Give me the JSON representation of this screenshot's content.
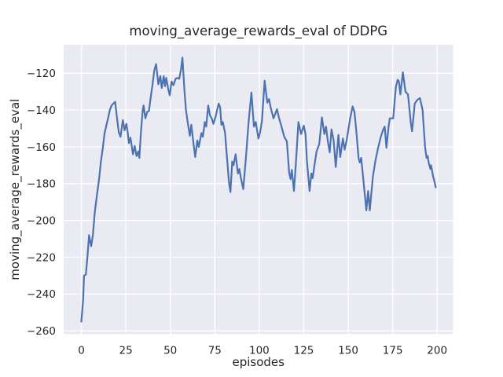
{
  "chart_data": {
    "type": "line",
    "title": "moving_average_rewards_eval of DDPG",
    "xlabel": "episodes",
    "ylabel": "moving_average_rewards_eval",
    "xlim": [
      -9.95,
      208.95
    ],
    "ylim": [
      -261.8,
      -104.5
    ],
    "xticks": [
      0,
      25,
      50,
      75,
      100,
      125,
      150,
      175,
      200
    ],
    "xtick_labels": [
      "0",
      "25",
      "50",
      "75",
      "100",
      "125",
      "150",
      "175",
      "200"
    ],
    "yticks": [
      -120,
      -140,
      -160,
      -180,
      -200,
      -220,
      -240,
      -260
    ],
    "ytick_labels": [
      "−120",
      "−140",
      "−160",
      "−180",
      "−200",
      "−220",
      "−240",
      "−260"
    ],
    "grid": true,
    "legend": null,
    "line_color": "#4c72b0",
    "plot_bg_color": "#eaeaf2",
    "grid_color": "#ffffff",
    "text_color": "#262626",
    "figure_bg_color": "#ffffff",
    "series": [
      {
        "name": "moving_average_rewards_eval",
        "x": [
          0,
          1,
          1.5,
          2.5,
          3.5,
          4.3,
          5.5,
          6.5,
          7.5,
          8.8,
          10,
          11,
          12,
          13,
          14,
          15,
          16,
          17,
          18,
          19,
          20,
          21,
          22,
          23.3,
          24.3,
          25.3,
          26,
          26.7,
          27.6,
          29,
          30,
          31,
          32,
          32.6,
          33.5,
          34.5,
          35,
          36,
          37,
          38,
          39,
          40,
          41,
          42,
          43.3,
          44.4,
          45.2,
          46.3,
          47,
          47.7,
          48.8,
          49.7,
          50.7,
          51.7,
          53,
          54,
          55,
          56,
          56.8,
          58,
          58.8,
          60,
          61,
          61.8,
          63,
          64,
          65.2,
          66,
          67.5,
          68.3,
          69.4,
          70.2,
          71.3,
          72.3,
          73.3,
          74.2,
          75.5,
          76.3,
          77.2,
          78,
          78.7,
          79.5,
          80.8,
          81.5,
          83,
          83.8,
          84.8,
          85.5,
          86.7,
          88,
          88.8,
          89.6,
          91,
          92.5,
          94,
          95.6,
          97,
          98,
          99.5,
          100.5,
          101.5,
          103,
          104.5,
          105.5,
          106.5,
          108,
          109,
          110,
          111,
          112.5,
          114,
          115.5,
          116.8,
          117.6,
          118.3,
          119.5,
          120.5,
          122,
          123.5,
          125,
          126,
          126.8,
          128.3,
          129.3,
          130,
          131,
          132.2,
          133.7,
          135.2,
          136.6,
          137.5,
          138.6,
          139.6,
          140.6,
          141.8,
          143,
          144.5,
          145.5,
          147,
          148,
          149,
          150,
          151,
          152.5,
          153.5,
          154.7,
          155.8,
          156.5,
          157.3,
          158.7,
          160.2,
          161.2,
          162.1,
          163.9,
          165.3,
          166.8,
          168.3,
          169.7,
          170.5,
          171.5,
          172.7,
          173.4,
          175.3,
          176.8,
          177.8,
          178.5,
          179.3,
          180.7,
          182.2,
          183.6,
          185.2,
          185.9,
          187.4,
          188.8,
          190.3,
          191.8,
          193.2,
          194,
          194.7,
          195.2,
          196.2,
          196.6,
          197.7,
          198.4,
          199.2
        ],
        "y": [
          -255,
          -243,
          -230,
          -229.5,
          -219,
          -208,
          -214,
          -208,
          -196,
          -186,
          -177,
          -168,
          -161,
          -153,
          -148.5,
          -144.5,
          -140,
          -137.5,
          -136.5,
          -135.5,
          -144,
          -152,
          -154.5,
          -145.5,
          -151,
          -147.5,
          -152,
          -158,
          -155,
          -164,
          -159.5,
          -165,
          -162.5,
          -166,
          -151.5,
          -140,
          -137.5,
          -144.5,
          -141,
          -140.5,
          -133,
          -126,
          -118.5,
          -115,
          -126,
          -121.5,
          -128,
          -121.5,
          -127,
          -122.5,
          -128.5,
          -132,
          -124.5,
          -126.5,
          -123,
          -122.5,
          -123,
          -118,
          -111.5,
          -130,
          -140,
          -148,
          -154,
          -148,
          -158,
          -165.5,
          -156.5,
          -160,
          -152.5,
          -154.5,
          -146.5,
          -149,
          -137.5,
          -143,
          -144.5,
          -147.5,
          -143.5,
          -140,
          -136.5,
          -138.5,
          -148,
          -146.5,
          -152.5,
          -161.5,
          -179.5,
          -184.5,
          -168,
          -170,
          -164,
          -174.5,
          -172,
          -176.5,
          -183,
          -166,
          -146.5,
          -130.5,
          -149,
          -146.5,
          -155.5,
          -152,
          -146,
          -124,
          -136,
          -134,
          -139,
          -144.5,
          -142,
          -139.5,
          -144,
          -149,
          -154.5,
          -157,
          -174,
          -177.5,
          -172.5,
          -184,
          -170,
          -146.5,
          -153,
          -148.5,
          -153,
          -167.5,
          -184,
          -174.5,
          -177,
          -170,
          -162.5,
          -158.5,
          -144,
          -153,
          -149,
          -157.5,
          -163,
          -150.5,
          -156.5,
          -171,
          -153.5,
          -165.5,
          -155.5,
          -161.5,
          -157,
          -151,
          -145,
          -138,
          -141,
          -153,
          -166,
          -168.5,
          -166,
          -180,
          -194.5,
          -184,
          -194.5,
          -176,
          -167.5,
          -160.5,
          -154.5,
          -150.5,
          -149,
          -160.5,
          -149,
          -144.5,
          -144.5,
          -127.5,
          -123.5,
          -124.5,
          -131.5,
          -119.5,
          -130,
          -131.5,
          -147,
          -151.5,
          -136.5,
          -134.5,
          -133.5,
          -140,
          -160,
          -166,
          -165,
          -168.5,
          -172,
          -170,
          -176,
          -178.5,
          -182
        ]
      }
    ]
  }
}
